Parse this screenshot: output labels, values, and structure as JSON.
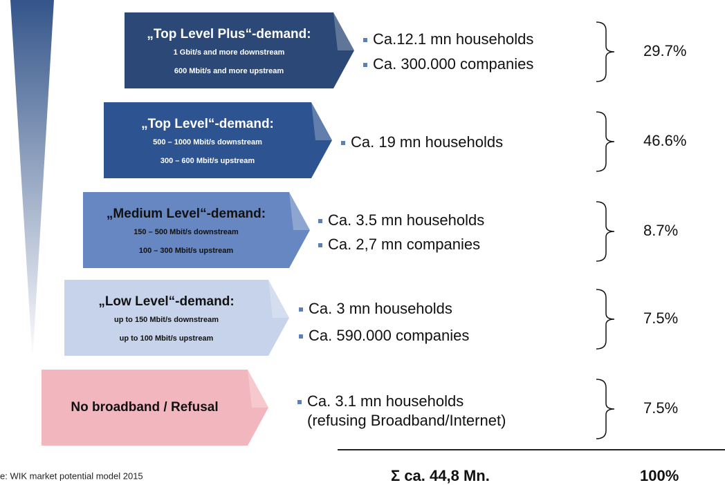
{
  "levels": [
    {
      "title": "„Top Level Plus“-demand:",
      "lines": [
        "1 Gbit/s and more downstream",
        "600 Mbit/s and more upstream"
      ],
      "items": [
        "Ca.12.1 mn households",
        "Ca. 300.000 companies"
      ],
      "share": "29.7%"
    },
    {
      "title": "„Top Level“-demand:",
      "lines": [
        "500 – 1000 Mbit/s downstream",
        "300 – 600 Mbit/s upstream"
      ],
      "items": [
        "Ca. 19 mn households"
      ],
      "share": "46.6%"
    },
    {
      "title": "„Medium Level“-demand:",
      "lines": [
        "150 – 500 Mbit/s downstream",
        "100 – 300 Mbit/s upstream"
      ],
      "items": [
        "Ca. 3.5 mn households",
        "Ca. 2,7 mn companies"
      ],
      "share": "8.7%"
    },
    {
      "title": "„Low Level“-demand:",
      "lines": [
        "up to 150 Mbit/s downstream",
        "up to 100 Mbit/s upstream"
      ],
      "items": [
        "Ca. 3 mn households",
        "Ca. 590.000 companies"
      ],
      "share": "7.5%"
    },
    {
      "title": "No broadband / Refusal",
      "lines": [],
      "items": [
        "Ca. 3.1 mn households",
        "(refusing Broadband/Internet)"
      ],
      "share": "7.5%"
    }
  ],
  "footer": {
    "source": "e: WIK market potential model 2015",
    "total": "Σ ca. 44,8 Mn.",
    "total_share": "100%"
  }
}
